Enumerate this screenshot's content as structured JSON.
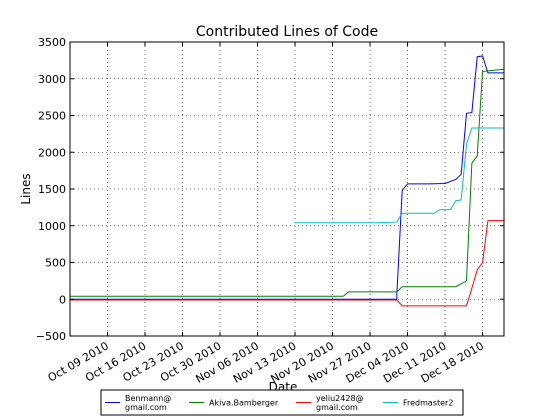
{
  "chart_data": {
    "type": "line",
    "title": "Contributed Lines of Code",
    "xlabel": "Date",
    "ylabel": "Lines",
    "x_type": "date",
    "xlim": [
      "2010-10-02",
      "2010-12-22"
    ],
    "ylim": [
      -500,
      3500
    ],
    "x_ticks": [
      "2010-10-09",
      "2010-10-16",
      "2010-10-23",
      "2010-10-30",
      "2010-11-06",
      "2010-11-13",
      "2010-11-20",
      "2010-11-27",
      "2010-12-04",
      "2010-12-11",
      "2010-12-18"
    ],
    "x_tick_labels": [
      "Oct 09 2010",
      "Oct 16 2010",
      "Oct 23 2010",
      "Oct 30 2010",
      "Nov 06 2010",
      "Nov 13 2010",
      "Nov 20 2010",
      "Nov 27 2010",
      "Dec 04 2010",
      "Dec 11 2010",
      "Dec 18 2010"
    ],
    "y_ticks": [
      -500,
      0,
      500,
      1000,
      1500,
      2000,
      2500,
      3000,
      3500
    ],
    "y_tick_labels": [
      "−500",
      "0",
      "500",
      "1000",
      "1500",
      "2000",
      "2500",
      "3000",
      "3500"
    ],
    "grid": true,
    "legend_position": "bottom-center, outside plot",
    "series": [
      {
        "name": "Benmann@\ngmail.com",
        "color": "#0000ff",
        "points": [
          [
            "2010-10-02",
            0
          ],
          [
            "2010-12-02",
            0
          ],
          [
            "2010-12-02",
            70
          ],
          [
            "2010-12-03",
            1480
          ],
          [
            "2010-12-04",
            1570
          ],
          [
            "2010-12-08",
            1570
          ],
          [
            "2010-12-11",
            1575
          ],
          [
            "2010-12-13",
            1630
          ],
          [
            "2010-12-14",
            1700
          ],
          [
            "2010-12-15",
            2530
          ],
          [
            "2010-12-16",
            2540
          ],
          [
            "2010-12-17",
            3300
          ],
          [
            "2010-12-18",
            3310
          ],
          [
            "2010-12-19",
            3080
          ],
          [
            "2010-12-22",
            3080
          ]
        ]
      },
      {
        "name": "Akiva.Bamberger",
        "color": "#008000",
        "points": [
          [
            "2010-10-02",
            40
          ],
          [
            "2010-11-22",
            40
          ],
          [
            "2010-11-23",
            100
          ],
          [
            "2010-12-02",
            100
          ],
          [
            "2010-12-03",
            170
          ],
          [
            "2010-12-13",
            170
          ],
          [
            "2010-12-14",
            210
          ],
          [
            "2010-12-15",
            250
          ],
          [
            "2010-12-16",
            1850
          ],
          [
            "2010-12-17",
            1950
          ],
          [
            "2010-12-18",
            3100
          ],
          [
            "2010-12-22",
            3130
          ]
        ]
      },
      {
        "name": "yeliu2428@\ngmail.com",
        "color": "#ff0000",
        "points": [
          [
            "2010-10-02",
            -10
          ],
          [
            "2010-12-02",
            -10
          ],
          [
            "2010-12-03",
            -90
          ],
          [
            "2010-12-14",
            -90
          ],
          [
            "2010-12-15",
            -90
          ],
          [
            "2010-12-16",
            150
          ],
          [
            "2010-12-17",
            400
          ],
          [
            "2010-12-18",
            500
          ],
          [
            "2010-12-19",
            1070
          ],
          [
            "2010-12-22",
            1070
          ]
        ]
      },
      {
        "name": "Fredmaster2",
        "color": "#00bfbf",
        "points": [
          [
            "2010-11-13",
            1040
          ],
          [
            "2010-11-28",
            1040
          ],
          [
            "2010-12-02",
            1050
          ],
          [
            "2010-12-03",
            1170
          ],
          [
            "2010-12-09",
            1170
          ],
          [
            "2010-12-10",
            1220
          ],
          [
            "2010-12-12",
            1220
          ],
          [
            "2010-12-13",
            1340
          ],
          [
            "2010-12-14",
            1350
          ],
          [
            "2010-12-15",
            2110
          ],
          [
            "2010-12-16",
            2330
          ],
          [
            "2010-12-22",
            2330
          ]
        ]
      }
    ]
  }
}
